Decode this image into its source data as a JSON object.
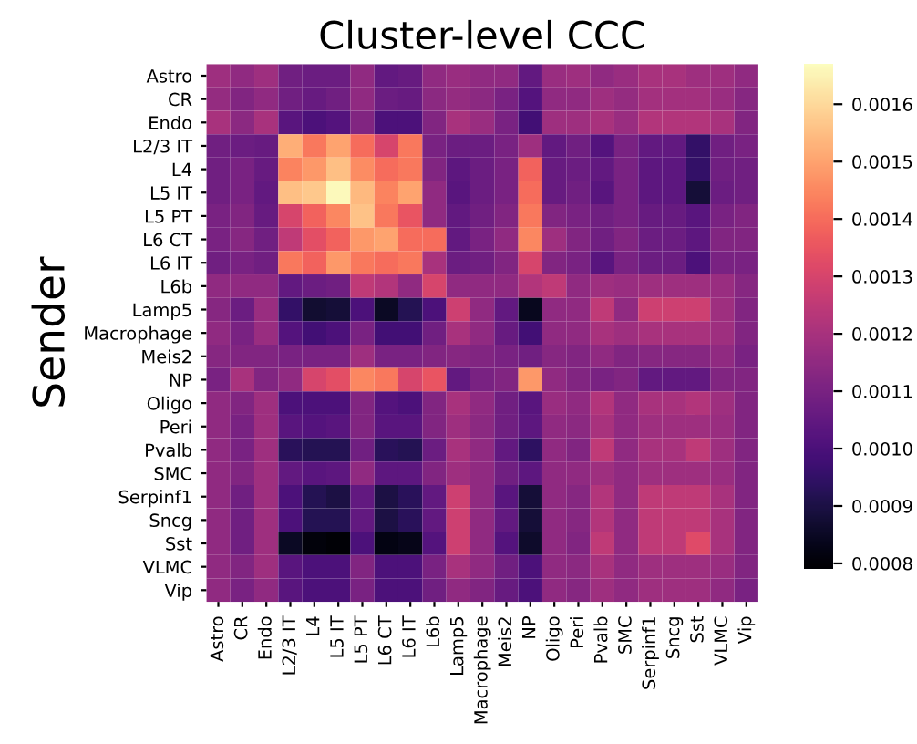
{
  "chart_data": {
    "type": "heatmap",
    "title": "Cluster-level CCC",
    "ylabel": "Sender",
    "categories": [
      "Astro",
      "CR",
      "Endo",
      "L2/3 IT",
      "L4",
      "L5 IT",
      "L5 PT",
      "L6 CT",
      "L6 IT",
      "L6b",
      "Lamp5",
      "Macrophage",
      "Meis2",
      "NP",
      "Oligo",
      "Peri",
      "Pvalb",
      "SMC",
      "Serpinf1",
      "Sncg",
      "Sst",
      "VLMC",
      "Vip"
    ],
    "y_categories": [
      "Astro",
      "CR",
      "Endo",
      "L2/3 IT",
      "L4",
      "L5 IT",
      "L5 PT",
      "L6 CT",
      "L6 IT",
      "L6b",
      "Lamp5",
      "Macrophage",
      "Meis2",
      "NP",
      "Oligo",
      "Peri",
      "Pvalb",
      "SMC",
      "Serpinf1",
      "Sncg",
      "Sst",
      "VLMC",
      "Vip"
    ],
    "cells": [
      [
        0.00118,
        0.00115,
        0.00118,
        0.00108,
        0.00107,
        0.00107,
        0.00115,
        0.00105,
        0.00106,
        0.00115,
        0.00117,
        0.00115,
        0.00115,
        0.00105,
        0.00117,
        0.00118,
        0.00115,
        0.00117,
        0.0012,
        0.0012,
        0.00118,
        0.00118,
        0.00115
      ],
      [
        0.00116,
        0.00112,
        0.00115,
        0.00108,
        0.00106,
        0.00108,
        0.00115,
        0.00107,
        0.00106,
        0.00114,
        0.00116,
        0.00114,
        0.0011,
        0.00102,
        0.00115,
        0.00115,
        0.00118,
        0.00116,
        0.00119,
        0.00119,
        0.00119,
        0.00117,
        0.00113
      ],
      [
        0.0012,
        0.00114,
        0.0012,
        0.00103,
        0.001,
        0.00102,
        0.00112,
        0.001,
        0.001,
        0.00112,
        0.0012,
        0.00117,
        0.0011,
        0.00098,
        0.00118,
        0.00118,
        0.0012,
        0.00117,
        0.00122,
        0.00122,
        0.00122,
        0.0012,
        0.00112
      ],
      [
        0.00108,
        0.00107,
        0.00106,
        0.00152,
        0.00142,
        0.0015,
        0.0014,
        0.0013,
        0.00142,
        0.0011,
        0.00107,
        0.00107,
        0.0011,
        0.00118,
        0.00105,
        0.00108,
        0.00102,
        0.0011,
        0.00105,
        0.00105,
        0.00095,
        0.00108,
        0.0011
      ],
      [
        0.00108,
        0.0011,
        0.00106,
        0.00144,
        0.00148,
        0.00155,
        0.00146,
        0.0014,
        0.00142,
        0.00112,
        0.00104,
        0.00107,
        0.0011,
        0.00138,
        0.00106,
        0.00107,
        0.00105,
        0.0011,
        0.00104,
        0.00104,
        0.00095,
        0.00108,
        0.00108
      ],
      [
        0.00108,
        0.0011,
        0.00105,
        0.00155,
        0.00157,
        0.00166,
        0.00154,
        0.00144,
        0.0015,
        0.00115,
        0.00103,
        0.00107,
        0.0011,
        0.0014,
        0.00106,
        0.00108,
        0.00103,
        0.0011,
        0.00104,
        0.00104,
        0.00088,
        0.00107,
        0.00108
      ],
      [
        0.0011,
        0.00112,
        0.00106,
        0.0013,
        0.00138,
        0.00145,
        0.00156,
        0.00142,
        0.00135,
        0.00115,
        0.00105,
        0.00108,
        0.00112,
        0.00142,
        0.00112,
        0.0011,
        0.00108,
        0.0011,
        0.00106,
        0.00106,
        0.00103,
        0.0011,
        0.00112
      ],
      [
        0.0011,
        0.00113,
        0.00108,
        0.00125,
        0.00133,
        0.00138,
        0.00148,
        0.0015,
        0.0014,
        0.0014,
        0.00105,
        0.0011,
        0.00115,
        0.00145,
        0.00118,
        0.00112,
        0.00108,
        0.00112,
        0.00107,
        0.00107,
        0.00104,
        0.00112,
        0.00112
      ],
      [
        0.00108,
        0.0011,
        0.00108,
        0.00142,
        0.00138,
        0.00148,
        0.00142,
        0.0014,
        0.00142,
        0.0012,
        0.00107,
        0.00108,
        0.00112,
        0.0013,
        0.00112,
        0.0011,
        0.00103,
        0.0011,
        0.00107,
        0.00107,
        0.001,
        0.0011,
        0.0011
      ],
      [
        0.00115,
        0.00115,
        0.00115,
        0.00105,
        0.00107,
        0.00108,
        0.00125,
        0.00122,
        0.00115,
        0.0013,
        0.00115,
        0.00115,
        0.00115,
        0.00122,
        0.00125,
        0.00115,
        0.00118,
        0.00117,
        0.00118,
        0.00118,
        0.00118,
        0.00117,
        0.00113
      ],
      [
        0.00113,
        0.00107,
        0.00117,
        0.00095,
        0.00087,
        0.00088,
        0.001,
        0.00085,
        0.00092,
        0.001,
        0.00128,
        0.00115,
        0.00105,
        0.00084,
        0.00115,
        0.00115,
        0.00125,
        0.00115,
        0.00128,
        0.00128,
        0.00128,
        0.00118,
        0.00112
      ],
      [
        0.00115,
        0.0011,
        0.00117,
        0.00102,
        0.00098,
        0.001,
        0.0011,
        0.00098,
        0.00098,
        0.00108,
        0.0012,
        0.00115,
        0.00106,
        0.00098,
        0.00115,
        0.00115,
        0.0012,
        0.00118,
        0.0012,
        0.0012,
        0.0012,
        0.00118,
        0.00112
      ],
      [
        0.00113,
        0.00112,
        0.00112,
        0.0011,
        0.0011,
        0.0011,
        0.00118,
        0.0011,
        0.0011,
        0.00112,
        0.00113,
        0.00112,
        0.0011,
        0.00108,
        0.00113,
        0.00112,
        0.00115,
        0.00112,
        0.00113,
        0.00113,
        0.00113,
        0.00115,
        0.0011
      ],
      [
        0.0011,
        0.0012,
        0.00112,
        0.00115,
        0.0013,
        0.00133,
        0.00145,
        0.00142,
        0.0013,
        0.00135,
        0.00105,
        0.0011,
        0.00112,
        0.00148,
        0.00115,
        0.00112,
        0.0011,
        0.00112,
        0.00105,
        0.00105,
        0.00105,
        0.00112,
        0.00112
      ],
      [
        0.00115,
        0.00112,
        0.00118,
        0.001,
        0.001,
        0.001,
        0.00112,
        0.00102,
        0.001,
        0.00112,
        0.0012,
        0.00115,
        0.00108,
        0.00103,
        0.00117,
        0.00115,
        0.00122,
        0.00115,
        0.0012,
        0.0012,
        0.00122,
        0.00118,
        0.00112
      ],
      [
        0.00115,
        0.0011,
        0.00118,
        0.00103,
        0.00102,
        0.00103,
        0.00112,
        0.00103,
        0.00103,
        0.00112,
        0.00118,
        0.00114,
        0.00108,
        0.00104,
        0.00115,
        0.00114,
        0.0012,
        0.00115,
        0.00118,
        0.00118,
        0.00118,
        0.00117,
        0.00112
      ],
      [
        0.00115,
        0.0011,
        0.00118,
        0.00093,
        0.00092,
        0.00092,
        0.00108,
        0.00093,
        0.00092,
        0.00107,
        0.0012,
        0.00115,
        0.00105,
        0.00094,
        0.00115,
        0.00112,
        0.00125,
        0.00115,
        0.0012,
        0.0012,
        0.00125,
        0.00118,
        0.00112
      ],
      [
        0.00115,
        0.00112,
        0.00118,
        0.00105,
        0.00103,
        0.00104,
        0.00115,
        0.00104,
        0.00104,
        0.00112,
        0.00118,
        0.00115,
        0.00108,
        0.00104,
        0.00115,
        0.00115,
        0.00118,
        0.00115,
        0.00118,
        0.00118,
        0.00118,
        0.00117,
        0.00112
      ],
      [
        0.00115,
        0.00108,
        0.00118,
        0.001,
        0.00092,
        0.0009,
        0.00105,
        0.0009,
        0.00093,
        0.00105,
        0.00128,
        0.00115,
        0.00103,
        0.00088,
        0.00115,
        0.00113,
        0.00122,
        0.00115,
        0.00125,
        0.00125,
        0.00125,
        0.0012,
        0.00112
      ],
      [
        0.00115,
        0.00108,
        0.00118,
        0.001,
        0.00092,
        0.00092,
        0.00105,
        0.0009,
        0.00093,
        0.00105,
        0.00128,
        0.00115,
        0.00105,
        0.00088,
        0.00115,
        0.00113,
        0.00122,
        0.00115,
        0.00125,
        0.00125,
        0.00125,
        0.0012,
        0.00112
      ],
      [
        0.00115,
        0.00108,
        0.00118,
        0.00085,
        0.00081,
        0.0008,
        0.001,
        0.00082,
        0.00083,
        0.00102,
        0.00128,
        0.00115,
        0.00102,
        0.00086,
        0.00115,
        0.00112,
        0.00125,
        0.00115,
        0.00125,
        0.00125,
        0.00132,
        0.0012,
        0.00112
      ],
      [
        0.00115,
        0.00112,
        0.00118,
        0.00103,
        0.001,
        0.001,
        0.00112,
        0.001,
        0.001,
        0.0011,
        0.0012,
        0.00115,
        0.00108,
        0.001,
        0.00115,
        0.00114,
        0.0012,
        0.00115,
        0.00118,
        0.00118,
        0.00118,
        0.00117,
        0.00112
      ],
      [
        0.00115,
        0.0011,
        0.00115,
        0.00103,
        0.001,
        0.001,
        0.0011,
        0.001,
        0.001,
        0.00108,
        0.00115,
        0.00112,
        0.00106,
        0.001,
        0.00115,
        0.00113,
        0.00118,
        0.00115,
        0.00118,
        0.00118,
        0.00118,
        0.00115,
        0.0011
      ]
    ],
    "clim": [
      0.00079,
      0.00167
    ],
    "cticks": [
      0.0008,
      0.0009,
      {
        "value": 0.001,
        "label": "0.0010"
      },
      0.0011,
      0.0012,
      0.0013,
      0.0014,
      0.0015,
      0.0016
    ]
  }
}
